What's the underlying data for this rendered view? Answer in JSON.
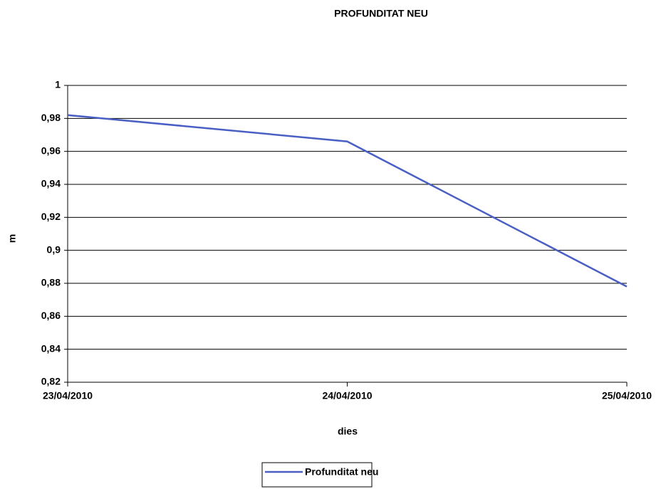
{
  "chart_data": {
    "type": "line",
    "title": "PROFUNDITAT NEU",
    "xlabel": "dies",
    "ylabel": "m",
    "categories": [
      "23/04/2010",
      "24/04/2010",
      "25/04/2010"
    ],
    "series": [
      {
        "name": "Profunditat neu",
        "color": "#4a5fc4",
        "values": [
          0.982,
          0.966,
          0.878
        ]
      }
    ],
    "ylim": [
      0.82,
      1
    ],
    "yticks": [
      {
        "value": 0.82,
        "label": "0,82"
      },
      {
        "value": 0.84,
        "label": "0,84"
      },
      {
        "value": 0.86,
        "label": "0,86"
      },
      {
        "value": 0.88,
        "label": "0,88"
      },
      {
        "value": 0.9,
        "label": "0,9"
      },
      {
        "value": 0.92,
        "label": "0,92"
      },
      {
        "value": 0.94,
        "label": "0,94"
      },
      {
        "value": 0.96,
        "label": "0,96"
      },
      {
        "value": 0.98,
        "label": "0,98"
      },
      1
    ],
    "grid": true,
    "legend": "bottom"
  }
}
